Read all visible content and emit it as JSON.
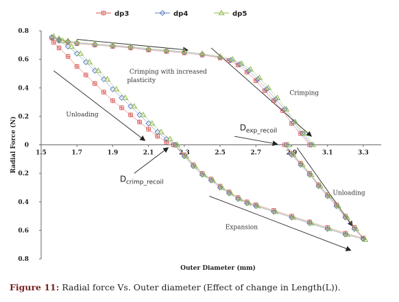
{
  "chart_data": {
    "type": "scatter",
    "xlabel": "Outer Diameter (mm)",
    "ylabel": "Radial Force (N)",
    "xlim": [
      1.5,
      3.4
    ],
    "ylim": [
      -0.8,
      0.8
    ],
    "x_ticks": [
      1.5,
      1.7,
      1.9,
      2.1,
      2.3,
      2.5,
      2.7,
      2.9,
      3.1,
      3.3
    ],
    "x_tick_labels": [
      "1.5",
      "1.7",
      "1.9",
      "2.1",
      "2.3",
      "2.5",
      "2.7",
      "2.9",
      "3.1",
      "3.3"
    ],
    "y_ticks": [
      0.8,
      0.6,
      0.4,
      0.2,
      0,
      -0.2,
      -0.4,
      -0.6,
      -0.8
    ],
    "y_tick_labels": [
      "0.8",
      "0.6",
      "0.4",
      "0.2",
      "0",
      "0.2",
      "0.4",
      "0.6",
      "0.8"
    ],
    "grid": false,
    "legend_position": "top",
    "series": [
      {
        "name": "dp3",
        "color": "#d9534f",
        "marker": "square-plus",
        "segments": [
          [
            [
              3.0,
              0.0
            ],
            [
              2.95,
              0.08
            ],
            [
              2.9,
              0.15
            ],
            [
              2.85,
              0.24
            ],
            [
              2.8,
              0.31
            ],
            [
              2.75,
              0.38
            ],
            [
              2.7,
              0.45
            ],
            [
              2.65,
              0.51
            ],
            [
              2.6,
              0.56
            ],
            [
              2.55,
              0.59
            ],
            [
              2.5,
              0.61
            ],
            [
              2.4,
              0.63
            ],
            [
              2.3,
              0.645
            ],
            [
              2.2,
              0.655
            ],
            [
              2.1,
              0.665
            ],
            [
              2.0,
              0.68
            ],
            [
              1.9,
              0.69
            ],
            [
              1.8,
              0.7
            ],
            [
              1.7,
              0.71
            ],
            [
              1.65,
              0.72
            ],
            [
              1.6,
              0.735
            ],
            [
              1.56,
              0.75
            ]
          ],
          [
            [
              1.56,
              0.75
            ],
            [
              1.57,
              0.72
            ],
            [
              1.6,
              0.68
            ],
            [
              1.65,
              0.62
            ],
            [
              1.7,
              0.55
            ],
            [
              1.75,
              0.49
            ],
            [
              1.8,
              0.43
            ],
            [
              1.85,
              0.37
            ],
            [
              1.9,
              0.31
            ],
            [
              1.95,
              0.26
            ],
            [
              2.0,
              0.21
            ],
            [
              2.05,
              0.16
            ],
            [
              2.1,
              0.11
            ],
            [
              2.15,
              0.06
            ],
            [
              2.2,
              0.02
            ],
            [
              2.24,
              0.0
            ]
          ],
          [
            [
              2.24,
              0.0
            ],
            [
              2.3,
              -0.07
            ],
            [
              2.35,
              -0.14
            ],
            [
              2.4,
              -0.2
            ],
            [
              2.45,
              -0.24
            ],
            [
              2.5,
              -0.29
            ],
            [
              2.55,
              -0.33
            ],
            [
              2.6,
              -0.37
            ],
            [
              2.65,
              -0.4
            ],
            [
              2.7,
              -0.42
            ],
            [
              2.8,
              -0.46
            ],
            [
              2.9,
              -0.5
            ],
            [
              3.0,
              -0.54
            ],
            [
              3.1,
              -0.58
            ],
            [
              3.2,
              -0.62
            ],
            [
              3.3,
              -0.655
            ]
          ],
          [
            [
              3.3,
              -0.655
            ],
            [
              3.25,
              -0.58
            ],
            [
              3.2,
              -0.5
            ],
            [
              3.15,
              -0.42
            ],
            [
              3.1,
              -0.35
            ],
            [
              3.05,
              -0.28
            ],
            [
              3.0,
              -0.2
            ],
            [
              2.95,
              -0.13
            ],
            [
              2.9,
              -0.06
            ],
            [
              2.86,
              0.0
            ]
          ]
        ]
      },
      {
        "name": "dp4",
        "color": "#5b7fc4",
        "marker": "diamond",
        "segments": [
          [
            [
              3.01,
              0.0
            ],
            [
              2.96,
              0.08
            ],
            [
              2.91,
              0.16
            ],
            [
              2.86,
              0.25
            ],
            [
              2.81,
              0.32
            ],
            [
              2.76,
              0.39
            ],
            [
              2.71,
              0.46
            ],
            [
              2.66,
              0.52
            ],
            [
              2.61,
              0.565
            ],
            [
              2.56,
              0.595
            ],
            [
              2.5,
              0.615
            ],
            [
              2.4,
              0.635
            ],
            [
              2.3,
              0.65
            ],
            [
              2.2,
              0.66
            ],
            [
              2.1,
              0.67
            ],
            [
              2.0,
              0.685
            ],
            [
              1.9,
              0.695
            ],
            [
              1.8,
              0.705
            ],
            [
              1.7,
              0.715
            ],
            [
              1.65,
              0.725
            ],
            [
              1.6,
              0.74
            ],
            [
              1.56,
              0.755
            ]
          ],
          [
            [
              1.6,
              0.73
            ],
            [
              1.65,
              0.69
            ],
            [
              1.7,
              0.64
            ],
            [
              1.75,
              0.58
            ],
            [
              1.8,
              0.52
            ],
            [
              1.85,
              0.46
            ],
            [
              1.9,
              0.39
            ],
            [
              1.95,
              0.33
            ],
            [
              2.0,
              0.27
            ],
            [
              2.05,
              0.21
            ],
            [
              2.1,
              0.15
            ],
            [
              2.15,
              0.09
            ],
            [
              2.2,
              0.04
            ],
            [
              2.25,
              0.0
            ]
          ],
          [
            [
              2.25,
              0.0
            ],
            [
              2.3,
              -0.08
            ],
            [
              2.35,
              -0.15
            ],
            [
              2.4,
              -0.21
            ],
            [
              2.45,
              -0.25
            ],
            [
              2.5,
              -0.3
            ],
            [
              2.55,
              -0.34
            ],
            [
              2.6,
              -0.38
            ],
            [
              2.65,
              -0.41
            ],
            [
              2.7,
              -0.43
            ],
            [
              2.8,
              -0.47
            ],
            [
              2.9,
              -0.51
            ],
            [
              3.0,
              -0.55
            ],
            [
              3.1,
              -0.59
            ],
            [
              3.2,
              -0.63
            ],
            [
              3.3,
              -0.66
            ]
          ],
          [
            [
              3.3,
              -0.66
            ],
            [
              3.25,
              -0.59
            ],
            [
              3.2,
              -0.51
            ],
            [
              3.15,
              -0.43
            ],
            [
              3.1,
              -0.36
            ],
            [
              3.05,
              -0.29
            ],
            [
              3.0,
              -0.21
            ],
            [
              2.95,
              -0.14
            ],
            [
              2.9,
              -0.07
            ],
            [
              2.87,
              0.0
            ]
          ]
        ]
      },
      {
        "name": "dp5",
        "color": "#8db84a",
        "marker": "triangle",
        "segments": [
          [
            [
              3.02,
              0.0
            ],
            [
              2.97,
              0.08
            ],
            [
              2.92,
              0.16
            ],
            [
              2.87,
              0.25
            ],
            [
              2.82,
              0.33
            ],
            [
              2.77,
              0.4
            ],
            [
              2.72,
              0.47
            ],
            [
              2.67,
              0.53
            ],
            [
              2.62,
              0.57
            ],
            [
              2.57,
              0.6
            ],
            [
              2.5,
              0.62
            ],
            [
              2.4,
              0.64
            ],
            [
              2.3,
              0.655
            ],
            [
              2.2,
              0.665
            ],
            [
              2.1,
              0.675
            ],
            [
              2.0,
              0.69
            ],
            [
              1.9,
              0.7
            ],
            [
              1.8,
              0.71
            ],
            [
              1.7,
              0.72
            ],
            [
              1.65,
              0.73
            ],
            [
              1.6,
              0.745
            ],
            [
              1.57,
              0.76
            ]
          ],
          [
            [
              1.62,
              0.73
            ],
            [
              1.67,
              0.69
            ],
            [
              1.72,
              0.64
            ],
            [
              1.77,
              0.58
            ],
            [
              1.82,
              0.52
            ],
            [
              1.87,
              0.46
            ],
            [
              1.92,
              0.39
            ],
            [
              1.97,
              0.33
            ],
            [
              2.02,
              0.27
            ],
            [
              2.07,
              0.21
            ],
            [
              2.12,
              0.15
            ],
            [
              2.17,
              0.09
            ],
            [
              2.22,
              0.04
            ],
            [
              2.26,
              0.0
            ]
          ],
          [
            [
              2.26,
              0.0
            ],
            [
              2.31,
              -0.08
            ],
            [
              2.36,
              -0.15
            ],
            [
              2.41,
              -0.21
            ],
            [
              2.46,
              -0.25
            ],
            [
              2.51,
              -0.3
            ],
            [
              2.56,
              -0.34
            ],
            [
              2.61,
              -0.38
            ],
            [
              2.66,
              -0.41
            ],
            [
              2.71,
              -0.43
            ],
            [
              2.81,
              -0.47
            ],
            [
              2.91,
              -0.51
            ],
            [
              3.01,
              -0.55
            ],
            [
              3.11,
              -0.59
            ],
            [
              3.21,
              -0.63
            ],
            [
              3.31,
              -0.665
            ]
          ],
          [
            [
              3.31,
              -0.665
            ],
            [
              3.26,
              -0.59
            ],
            [
              3.21,
              -0.51
            ],
            [
              3.16,
              -0.43
            ],
            [
              3.11,
              -0.36
            ],
            [
              3.06,
              -0.29
            ],
            [
              3.01,
              -0.21
            ],
            [
              2.96,
              -0.14
            ],
            [
              2.91,
              -0.07
            ],
            [
              2.88,
              0.0
            ]
          ]
        ]
      }
    ],
    "annotations": [
      {
        "id": "crimping-plasticity-1",
        "text": "Crimping with increased",
        "x": 2.21,
        "y": 0.5
      },
      {
        "id": "crimping-plasticity-2",
        "text": "plasticity",
        "x": 2.06,
        "y": 0.44
      },
      {
        "id": "unloading-left",
        "text": "Unloading",
        "x": 1.73,
        "y": 0.2
      },
      {
        "id": "crimping-right",
        "text": "Crimping",
        "x": 2.97,
        "y": 0.35
      },
      {
        "id": "unloading-right",
        "text": "Unloading",
        "x": 3.22,
        "y": -0.35
      },
      {
        "id": "expansion",
        "text": "Expansion",
        "x": 2.62,
        "y": -0.59
      }
    ],
    "arrows": [
      {
        "id": "arrow-unloading-left",
        "from": [
          1.57,
          0.52
        ],
        "to": [
          2.08,
          0.03
        ]
      },
      {
        "id": "arrow-crimping-top",
        "from": [
          1.7,
          0.74
        ],
        "to": [
          2.32,
          0.665
        ]
      },
      {
        "id": "arrow-crimping-right",
        "from": [
          2.45,
          0.68
        ],
        "to": [
          3.01,
          0.06
        ]
      },
      {
        "id": "arrow-unloading-right",
        "from": [
          2.93,
          -0.02
        ],
        "to": [
          3.24,
          -0.57
        ]
      },
      {
        "id": "arrow-expansion",
        "from": [
          2.44,
          -0.36
        ],
        "to": [
          3.23,
          -0.74
        ]
      },
      {
        "id": "arrow-exp-recoil",
        "from": [
          2.58,
          0.06
        ],
        "to": [
          2.82,
          0.005
        ]
      },
      {
        "id": "arrow-crimp-recoil",
        "from": [
          2.02,
          -0.2
        ],
        "to": [
          2.21,
          -0.02
        ]
      }
    ],
    "recoil_labels": [
      {
        "id": "d-exp-recoil",
        "main": "D",
        "sub": "exp_recoil",
        "x": 2.61,
        "y": 0.1
      },
      {
        "id": "d-crimp-recoil",
        "main": "D",
        "sub": "crimp_recoil",
        "x": 1.94,
        "y": -0.26
      }
    ]
  },
  "caption": {
    "label": "Figure 11:",
    "text": " Radial force Vs. Outer diameter (Effect of change in Length(L))."
  }
}
